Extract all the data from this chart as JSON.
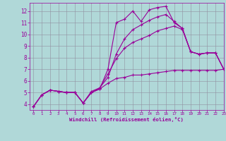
{
  "background_color": "#b0d8d8",
  "grid_color": "#9090a0",
  "line_color": "#990099",
  "marker": "+",
  "xlim": [
    -0.5,
    23
  ],
  "ylim": [
    3.5,
    12.7
  ],
  "xticks": [
    0,
    1,
    2,
    3,
    4,
    5,
    6,
    7,
    8,
    9,
    10,
    11,
    12,
    13,
    14,
    15,
    16,
    17,
    18,
    19,
    20,
    21,
    22,
    23
  ],
  "yticks": [
    4,
    5,
    6,
    7,
    8,
    9,
    10,
    11,
    12
  ],
  "xlabel": "Windchill (Refroidissement éolien,°C)",
  "series": [
    [
      3.8,
      4.8,
      5.2,
      5.1,
      5.0,
      5.0,
      4.1,
      5.0,
      5.3,
      7.0,
      11.0,
      11.3,
      12.0,
      11.1,
      12.1,
      12.3,
      12.4,
      11.0,
      10.5,
      8.5,
      8.3,
      8.4,
      8.4,
      7.0
    ],
    [
      3.8,
      4.8,
      5.2,
      5.1,
      5.0,
      5.0,
      4.1,
      5.0,
      5.4,
      6.6,
      7.9,
      8.8,
      9.3,
      9.6,
      9.9,
      10.3,
      10.5,
      10.7,
      10.4,
      8.5,
      8.3,
      8.4,
      8.4,
      7.0
    ],
    [
      3.8,
      4.8,
      5.2,
      5.1,
      5.0,
      5.0,
      4.1,
      5.0,
      5.3,
      5.8,
      6.2,
      6.3,
      6.5,
      6.5,
      6.6,
      6.7,
      6.8,
      6.9,
      6.9,
      6.9,
      6.9,
      6.9,
      6.9,
      7.0
    ],
    [
      3.8,
      4.8,
      5.2,
      5.1,
      5.0,
      5.0,
      4.1,
      5.1,
      5.4,
      6.3,
      8.3,
      9.6,
      10.4,
      10.8,
      11.2,
      11.5,
      11.7,
      11.1,
      10.5,
      8.5,
      8.3,
      8.4,
      8.4,
      7.0
    ]
  ]
}
